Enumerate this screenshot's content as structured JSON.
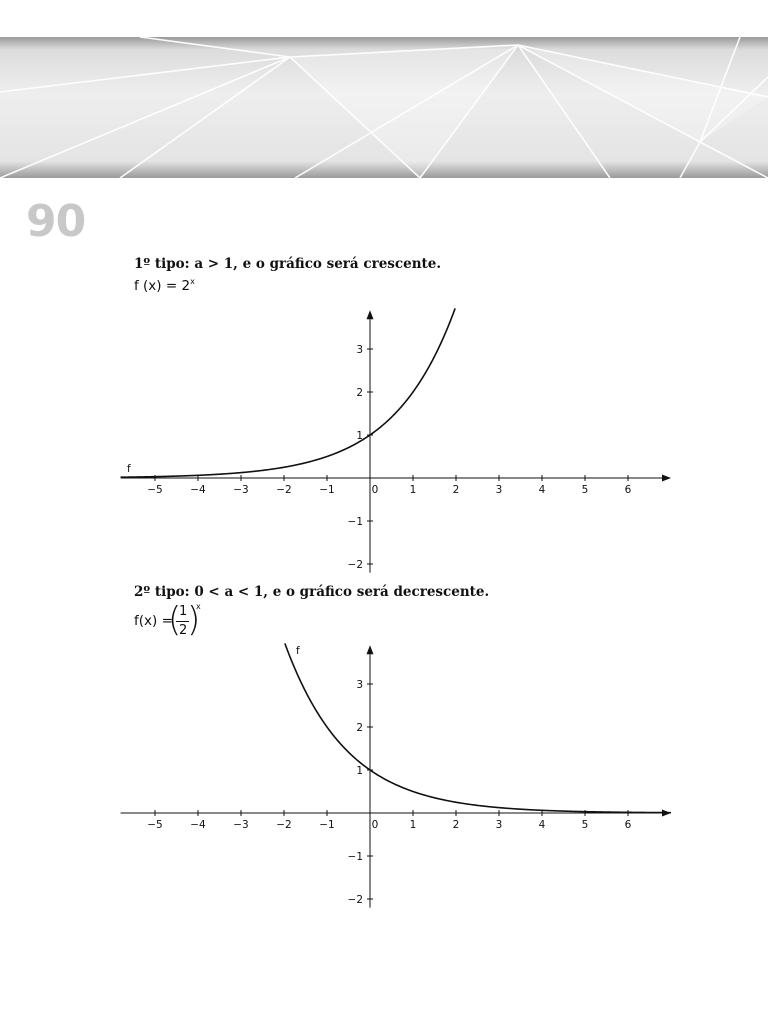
{
  "page": {
    "number": "90"
  },
  "section1": {
    "heading": "1º tipo: a > 1, e o gráfico será crescente.",
    "formula_base": "f (x) = 2",
    "formula_exp": "x"
  },
  "section2": {
    "heading": "2º tipo: 0 < a < 1, e o gráfico será decrescente.",
    "formula_lhs": "f(x) =",
    "frac_num": "1",
    "frac_den": "2",
    "formula_exp": "x"
  },
  "chart_data": [
    {
      "type": "line",
      "series": [
        {
          "name": "f",
          "base": 2
        }
      ],
      "xlim": [
        -5.8,
        7
      ],
      "ylim": [
        -2.2,
        3.9
      ],
      "xticks": [
        -5,
        -4,
        -3,
        -2,
        -1,
        0,
        1,
        2,
        3,
        4,
        5,
        6
      ],
      "yticks": [
        -2,
        -1,
        1,
        2,
        3
      ],
      "grid": false
    },
    {
      "type": "line",
      "series": [
        {
          "name": "f",
          "base": 0.5
        }
      ],
      "xlim": [
        -5.8,
        7
      ],
      "ylim": [
        -2.2,
        3.9
      ],
      "xticks": [
        -5,
        -4,
        -3,
        -2,
        -1,
        0,
        1,
        2,
        3,
        4,
        5,
        6
      ],
      "yticks": [
        -2,
        -1,
        1,
        2,
        3
      ],
      "grid": false
    }
  ]
}
